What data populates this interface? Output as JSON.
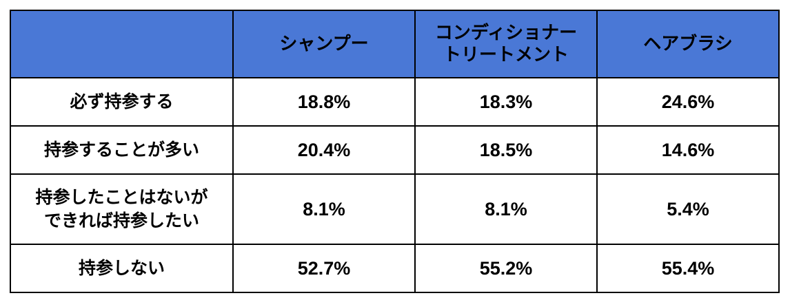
{
  "table": {
    "columns": [
      "",
      "シャンプー",
      "コンディショナー\nトリートメント",
      "ヘアブラシ"
    ],
    "column_lines": {
      "conditioner_line1": "コンディショナー",
      "conditioner_line2": "トリートメント"
    },
    "rows": [
      {
        "label_lines": [
          "必ず持参する"
        ],
        "values": [
          "18.8%",
          "18.3%",
          "24.6%"
        ]
      },
      {
        "label_lines": [
          "持参することが多い"
        ],
        "values": [
          "20.4%",
          "18.5%",
          "14.6%"
        ]
      },
      {
        "label_lines": [
          "持参したことはないが",
          "できれば持参したい"
        ],
        "values": [
          "8.1%",
          "8.1%",
          "5.4%"
        ]
      },
      {
        "label_lines": [
          "持参しない"
        ],
        "values": [
          "52.7%",
          "55.2%",
          "55.4%"
        ]
      }
    ]
  },
  "colors": {
    "header_bg": "#4a78d6",
    "header_text": "#ffffff",
    "border": "#000000"
  }
}
